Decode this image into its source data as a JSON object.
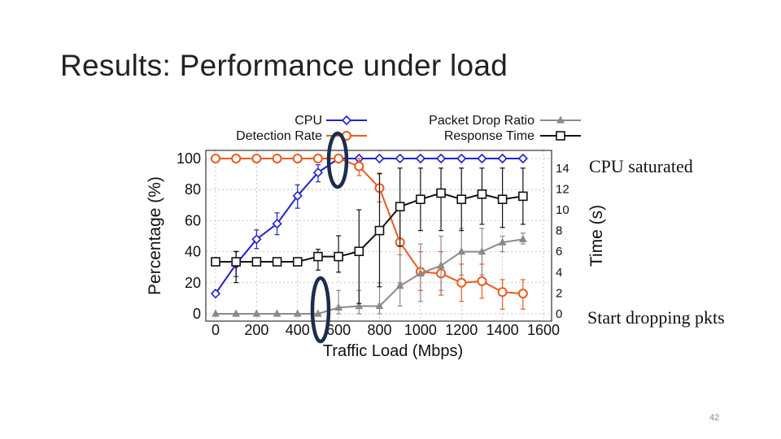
{
  "slide": {
    "title": "Results: Performance under load",
    "page_number": "42"
  },
  "annotations": {
    "cpu_saturated": "CPU saturated",
    "start_dropping": "Start dropping pkts"
  },
  "chart_data": {
    "type": "line",
    "xlabel": "Traffic Load (Mbps)",
    "ylabel": "Percentage (%)",
    "y2label": "Time (s)",
    "xlim": [
      0,
      1600
    ],
    "ylim": [
      0,
      100
    ],
    "y2lim": [
      0,
      15
    ],
    "x_ticks": [
      0,
      200,
      400,
      600,
      800,
      1000,
      1200,
      1400,
      1600
    ],
    "x_tick_labels": [
      "0",
      "200",
      "400",
      "600",
      "800",
      "1000",
      "1200",
      "1400",
      "1600"
    ],
    "y_ticks": [
      0,
      20,
      40,
      60,
      80,
      100
    ],
    "y_tick_labels": [
      "0",
      "20",
      "40",
      "60",
      "80",
      "100"
    ],
    "y2_ticks": [
      0,
      2,
      4,
      6,
      8,
      10,
      12,
      14
    ],
    "y2_tick_labels": [
      "0",
      "2",
      "4",
      "6",
      "8",
      "10",
      "12",
      "14"
    ],
    "grid": true,
    "legend_position": "top",
    "x": [
      0,
      100,
      200,
      300,
      400,
      500,
      600,
      700,
      800,
      900,
      1000,
      1100,
      1200,
      1300,
      1400,
      1500
    ],
    "series": [
      {
        "name": "CPU",
        "axis": "left",
        "color": "#1f1fd6",
        "marker": "diamond",
        "x": [
          0,
          100,
          200,
          300,
          400,
          500,
          600,
          700,
          800,
          900,
          1000,
          1100,
          1200,
          1300,
          1400,
          1500
        ],
        "values": [
          13,
          32,
          48,
          58,
          76,
          91,
          100,
          100,
          100,
          100,
          100,
          100,
          100,
          100,
          100,
          100
        ],
        "err_low": [
          13,
          24,
          42,
          51,
          68,
          85,
          100,
          100,
          100,
          100,
          100,
          100,
          100,
          100,
          100,
          100
        ],
        "err_high": [
          13,
          40,
          54,
          65,
          83,
          96,
          100,
          100,
          100,
          100,
          100,
          100,
          100,
          100,
          100,
          100
        ]
      },
      {
        "name": "Detection Rate",
        "axis": "left",
        "color": "#ee5a1c",
        "marker": "circle",
        "x": [
          0,
          100,
          200,
          300,
          400,
          500,
          600,
          700,
          800,
          900,
          1000,
          1100,
          1200,
          1300,
          1400,
          1500
        ],
        "values": [
          100,
          100,
          100,
          100,
          100,
          100,
          100,
          95,
          81,
          46,
          27,
          26,
          20,
          21,
          14,
          13
        ],
        "err_low": [
          100,
          100,
          100,
          100,
          100,
          100,
          100,
          89,
          72,
          20,
          15,
          12,
          8,
          10,
          3,
          3
        ],
        "err_high": [
          100,
          100,
          100,
          100,
          100,
          100,
          100,
          100,
          90,
          70,
          40,
          40,
          32,
          32,
          22,
          22
        ]
      },
      {
        "name": "Packet Drop Ratio",
        "axis": "left",
        "color": "#8a8a8a",
        "marker": "triangle",
        "x": [
          0,
          100,
          200,
          300,
          400,
          500,
          600,
          700,
          800,
          900,
          1000,
          1100,
          1200,
          1300,
          1400,
          1500
        ],
        "values": [
          0,
          0,
          0,
          0,
          0,
          0,
          4,
          5,
          5,
          18,
          26,
          31,
          40,
          40,
          46,
          48
        ],
        "err_low": [
          0,
          0,
          0,
          0,
          0,
          0,
          0,
          0,
          0,
          5,
          8,
          15,
          25,
          25,
          40,
          45
        ],
        "err_high": [
          0,
          0,
          0,
          0,
          0,
          0,
          15,
          15,
          20,
          38,
          45,
          50,
          55,
          55,
          50,
          52
        ]
      },
      {
        "name": "Response Time",
        "axis": "right",
        "color": "#111111",
        "marker": "square",
        "x": [
          0,
          100,
          200,
          300,
          400,
          500,
          600,
          700,
          800,
          900,
          1000,
          1100,
          1200,
          1300,
          1400,
          1500
        ],
        "values": [
          5,
          5,
          5,
          5,
          5,
          5.5,
          5.5,
          6,
          8,
          10.3,
          11,
          11.6,
          11,
          11.5,
          11,
          11.3
        ],
        "err_low": [
          5,
          3,
          5,
          5,
          5,
          4.2,
          4,
          1,
          2.6,
          6.5,
          8,
          8,
          8,
          8.6,
          8.3,
          8.6
        ],
        "err_high": [
          5,
          6,
          5,
          5,
          5,
          6.2,
          7.5,
          10,
          13.5,
          14,
          14,
          14,
          14,
          14,
          14,
          14
        ]
      }
    ]
  }
}
